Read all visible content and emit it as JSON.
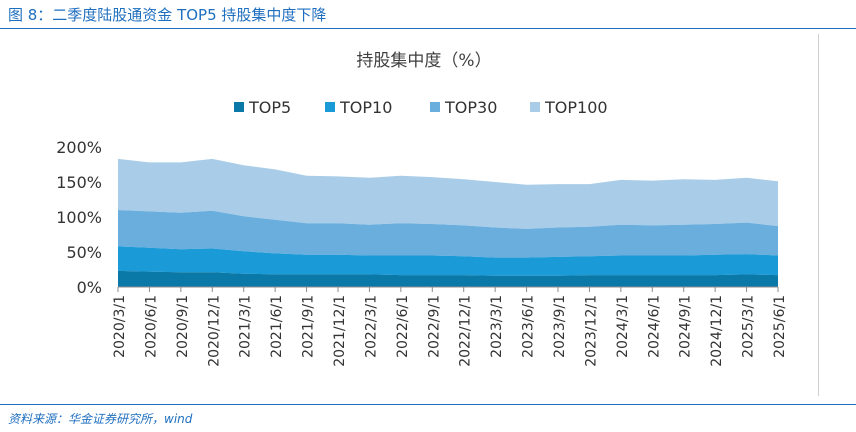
{
  "header": {
    "figure_title": "图 8：二季度陆股通资金 TOP5 持股集中度下降"
  },
  "footer": {
    "source": "资料来源：华金证券研究所，wind"
  },
  "colors": {
    "accent": "#1f6fbf",
    "TOP5": "#0b79a8",
    "TOP10": "#1a9ad6",
    "TOP30": "#6aaede",
    "TOP100": "#a9cde8"
  },
  "chart_data": {
    "type": "area",
    "title": "持股集中度（%）",
    "xlabel": "",
    "ylabel": "",
    "ylim": [
      0,
      200
    ],
    "yticks": [
      "0%",
      "50%",
      "100%",
      "150%",
      "200%"
    ],
    "legend_position": "top",
    "categories": [
      "2020/3/1",
      "2020/6/1",
      "2020/9/1",
      "2020/12/1",
      "2021/3/1",
      "2021/6/1",
      "2021/9/1",
      "2021/12/1",
      "2022/3/1",
      "2022/6/1",
      "2022/9/1",
      "2022/12/1",
      "2023/3/1",
      "2023/6/1",
      "2023/9/1",
      "2023/12/1",
      "2024/3/1",
      "2024/6/1",
      "2024/9/1",
      "2024/12/1",
      "2025/3/1",
      "2025/6/1"
    ],
    "series": [
      {
        "name": "TOP5",
        "values": [
          23,
          22,
          21,
          21,
          19,
          18,
          18,
          18,
          18,
          17,
          17,
          17,
          16,
          16,
          16,
          17,
          17,
          17,
          17,
          17,
          18,
          17
        ]
      },
      {
        "name": "TOP10",
        "values": [
          35,
          34,
          33,
          34,
          32,
          30,
          28,
          28,
          27,
          28,
          28,
          27,
          26,
          26,
          27,
          27,
          28,
          28,
          28,
          29,
          29,
          28
        ]
      },
      {
        "name": "TOP30",
        "values": [
          52,
          52,
          52,
          54,
          50,
          48,
          45,
          45,
          44,
          46,
          45,
          44,
          43,
          41,
          42,
          42,
          44,
          43,
          44,
          44,
          45,
          42
        ]
      },
      {
        "name": "TOP100",
        "values": [
          73,
          70,
          72,
          74,
          73,
          72,
          68,
          67,
          67,
          68,
          67,
          66,
          65,
          63,
          62,
          61,
          64,
          64,
          65,
          63,
          64,
          64
        ]
      }
    ]
  }
}
